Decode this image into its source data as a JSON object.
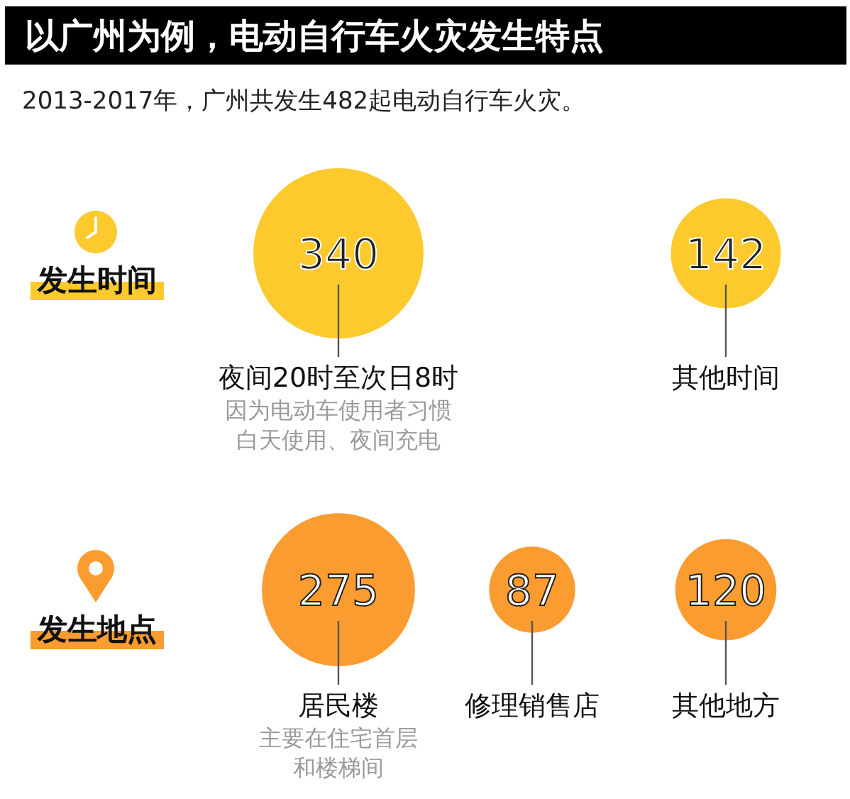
{
  "chart_data": [
    {
      "type": "other",
      "title": "以广州为例，电动自行车火灾发生特点",
      "subtitle": "2013-2017年，广州共发生482起电动自行车火灾。",
      "ylabel": "发生时间",
      "categories": [
        "夜间20时至次日8时",
        "其他时间"
      ],
      "values": [
        340,
        142
      ],
      "color": "#fdca2e",
      "data_labels": true,
      "annotations": [
        {
          "text": "因为电动车使用者习惯",
          "x": "夜间20时至次日8时"
        },
        {
          "text": "白天使用、夜间充电",
          "x": "夜间20时至次日8时"
        }
      ]
    },
    {
      "type": "other",
      "ylabel": "发生地点",
      "categories": [
        "居民楼",
        "修理销售店",
        "其他地方"
      ],
      "values": [
        275,
        87,
        120
      ],
      "color": "#fb9c30",
      "data_labels": true,
      "annotations": [
        {
          "text": "主要在住宅首层",
          "x": "居民楼"
        },
        {
          "text": "和楼梯间",
          "x": "居民楼"
        }
      ]
    }
  ]
}
